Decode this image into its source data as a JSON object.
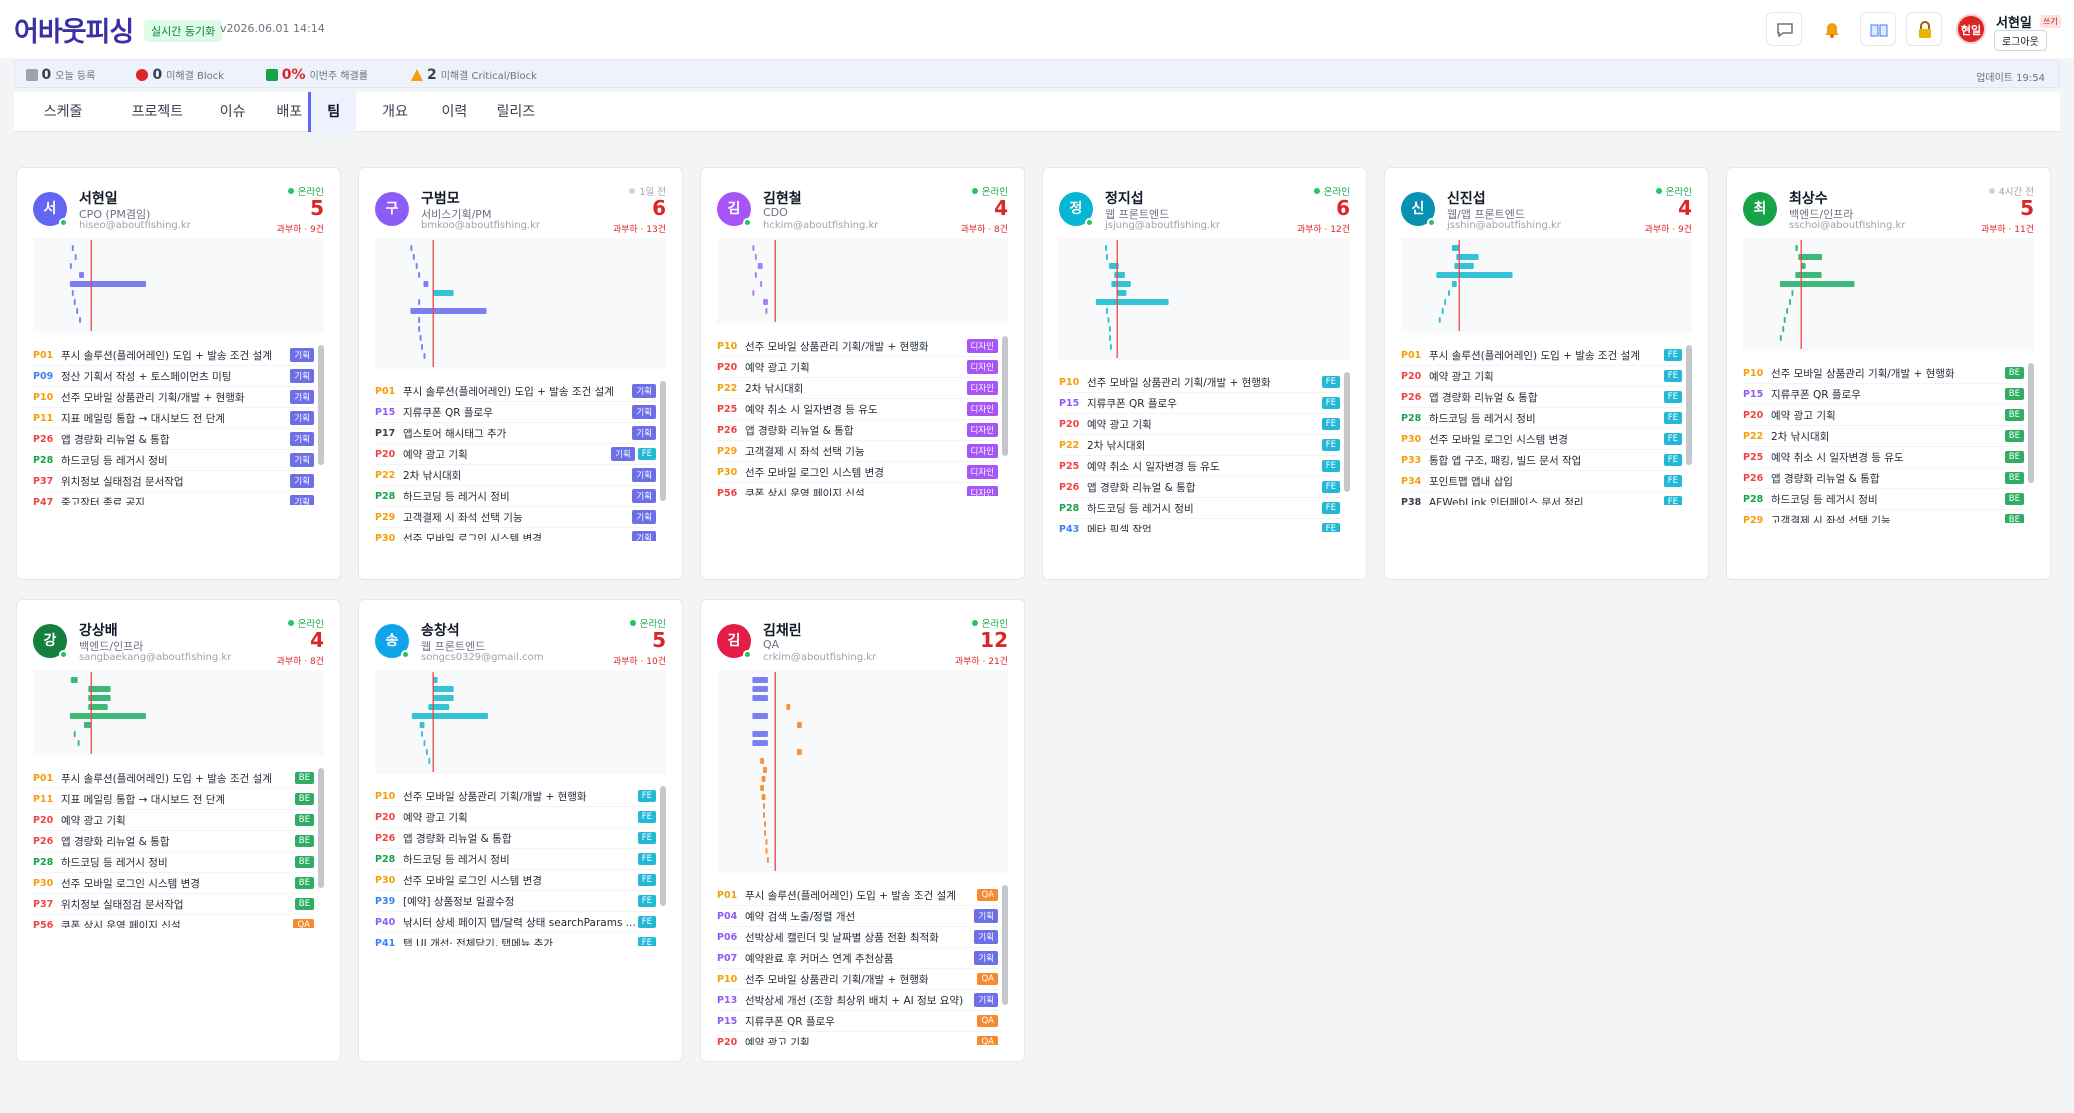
{
  "header": {
    "logo": "어바웃피싱",
    "sync_badge": "실시간 동기화",
    "version": "v2026.06.01 14:14",
    "avatar": "현일",
    "user_name": "서현일",
    "user_role": "쓰기",
    "logout": "로그아웃"
  },
  "stats": [
    {
      "value": 0,
      "label": "오늘 등록",
      "color": "#374151"
    },
    {
      "value": 0,
      "label": "미해결 Block",
      "color": "#374151"
    },
    {
      "value": "0%",
      "label": "이번주 해결률",
      "color": "#dc2626"
    },
    {
      "value": 2,
      "label": "미해결 Critical/Block",
      "color": "#374151"
    }
  ],
  "updated": "업데이트 19:54",
  "tabs": [
    "스케줄",
    "프로젝트",
    "이슈",
    "배포",
    "팀",
    "개요",
    "이력",
    "릴리즈"
  ],
  "active_tab": 4,
  "timeline": {
    "xlim": [
      0,
      60
    ],
    "today": 12
  },
  "tag_colors": {
    "기획": "#6c6fe6",
    "디자인": "#a855f7",
    "FE": "#22b8d6",
    "BE": "#2fae63",
    "QA": "#f58a2e"
  },
  "bar_colors": {
    "기획": "#7b7ff0",
    "디자인": "#a77ef0",
    "FE": "#34c3d6",
    "BE": "#3cb878",
    "QA": "#f5923e"
  },
  "priority_colors": {
    "P01": "#f59e0b",
    "P04": "#8b5cf6",
    "P06": "#8b5cf6",
    "P07": "#8b5cf6",
    "P09": "#3b82f6",
    "P10": "#f59e0b",
    "P11": "#f59e0b",
    "P13": "#8b5cf6",
    "P15": "#8b5cf6",
    "P17": "#374151",
    "P20": "#ef4444",
    "P22": "#f59e0b",
    "P25": "#ef4444",
    "P26": "#ef4444",
    "P28": "#16a34a",
    "P29": "#f59e0b",
    "P30": "#f59e0b",
    "P33": "#f59e0b",
    "P34": "#f59e0b",
    "P37": "#ef4444",
    "P38": "#374151",
    "P39": "#3b82f6",
    "P40": "#8b5cf6",
    "P41": "#3b82f6",
    "P43": "#3b82f6",
    "P47": "#ef4444",
    "P56": "#ef4444"
  },
  "members": [
    {
      "initial": "서",
      "avatar_color": "#6366f1",
      "name": "서현일",
      "role": "CPO (PM겸임)",
      "email": "hiseo@aboutfishing.kr",
      "status": "온라인",
      "online": true,
      "count": 5,
      "load": "과부하 · 9건",
      "bars": [
        [
          8,
          0.4,
          "기획"
        ],
        [
          8.6,
          0.4,
          "기획"
        ],
        [
          7.6,
          0.4,
          "기획"
        ],
        [
          9.5,
          1,
          "기획"
        ],
        [
          7.6,
          15.7,
          "기획"
        ],
        [
          8,
          0.4,
          "기획"
        ],
        [
          8.4,
          0.4,
          "기획"
        ],
        [
          8.9,
          0.4,
          "기획"
        ],
        [
          9.5,
          0.4,
          "기획"
        ]
      ],
      "tasks": [
        [
          "P01",
          "푸시 솔루션(플레어레인) 도입 + 발송 조건 설계",
          [
            "기획"
          ]
        ],
        [
          "P09",
          "정산 기획서 작성 + 토스페이먼츠 미팅",
          [
            "기획"
          ]
        ],
        [
          "P10",
          "선주 모바일 상품관리 기획/개발 + 현행화",
          [
            "기획"
          ]
        ],
        [
          "P11",
          "지표 메일링 통합 → 대시보드 전 단계",
          [
            "기획"
          ]
        ],
        [
          "P26",
          "앱 경량화 리뉴얼 & 통합",
          [
            "기획"
          ]
        ],
        [
          "P28",
          "하드코딩 등 레거시 정비",
          [
            "기획"
          ]
        ],
        [
          "P37",
          "위치정보 실태점검 문서작업",
          [
            "기획"
          ]
        ],
        [
          "P47",
          "중고장터 종료 공지",
          [
            "기획"
          ]
        ]
      ]
    },
    {
      "initial": "구",
      "avatar_color": "#8b5cf6",
      "name": "구범모",
      "role": "서비스기획/PM",
      "email": "bmkoo@aboutfishing.kr",
      "status": "1일 전",
      "online": false,
      "count": 6,
      "load": "과부하 · 13건",
      "bars": [
        [
          7.3,
          0.4,
          "기획"
        ],
        [
          7.8,
          0.4,
          "기획"
        ],
        [
          8.4,
          0.4,
          "기획"
        ],
        [
          8.9,
          0.4,
          "기획"
        ],
        [
          10,
          1,
          "기획"
        ],
        [
          11.9,
          4.3,
          "FE"
        ],
        [
          8.9,
          0.4,
          "기획"
        ],
        [
          7.3,
          15.7,
          "기획"
        ],
        [
          8.9,
          0.4,
          "기획"
        ],
        [
          8.9,
          0.4,
          "기획"
        ],
        [
          9.2,
          0.4,
          "기획"
        ],
        [
          9.5,
          0.4,
          "기획"
        ],
        [
          10,
          0.4,
          "기획"
        ]
      ],
      "tasks": [
        [
          "P01",
          "푸시 솔루션(플레어레인) 도입 + 발송 조건 설계",
          [
            "기획"
          ]
        ],
        [
          "P15",
          "지류쿠폰 QR 플로우",
          [
            "기획"
          ]
        ],
        [
          "P17",
          "앱스토어 해시태그 추가",
          [
            "기획"
          ]
        ],
        [
          "P20",
          "예약 광고 기획",
          [
            "기획",
            "FE"
          ]
        ],
        [
          "P22",
          "2차 낚시대회",
          [
            "기획"
          ]
        ],
        [
          "P28",
          "하드코딩 등 레거시 정비",
          [
            "기획"
          ]
        ],
        [
          "P29",
          "고객결제 시 좌석 선택 기능",
          [
            "기획"
          ]
        ],
        [
          "P30",
          "선주 모바일 로그인 시스템 변경",
          [
            "기획"
          ]
        ]
      ]
    },
    {
      "initial": "김",
      "avatar_color": "#a855f7",
      "name": "김현철",
      "role": "CDO",
      "email": "hckim@aboutfishing.kr",
      "status": "온라인",
      "online": true,
      "count": 4,
      "load": "과부하 · 8건",
      "bars": [
        [
          7.3,
          0.4,
          "디자인"
        ],
        [
          7.8,
          0.4,
          "디자인"
        ],
        [
          8.4,
          1,
          "디자인"
        ],
        [
          7.8,
          0.4,
          "디자인"
        ],
        [
          8.9,
          0.4,
          "디자인"
        ],
        [
          7.3,
          0.4,
          "디자인"
        ],
        [
          9.5,
          1,
          "디자인"
        ],
        [
          10,
          0.4,
          "디자인"
        ]
      ],
      "tasks": [
        [
          "P10",
          "선주 모바일 상품관리 기획/개발 + 현행화",
          [
            "디자인"
          ]
        ],
        [
          "P20",
          "예약 광고 기획",
          [
            "디자인"
          ]
        ],
        [
          "P22",
          "2차 낚시대회",
          [
            "디자인"
          ]
        ],
        [
          "P25",
          "예약 취소 시 일자변경 등 유도",
          [
            "디자인"
          ]
        ],
        [
          "P26",
          "앱 경량화 리뉴얼 & 통합",
          [
            "디자인"
          ]
        ],
        [
          "P29",
          "고객결제 시 좌석 선택 기능",
          [
            "디자인"
          ]
        ],
        [
          "P30",
          "선주 모바일 로그인 시스템 변경",
          [
            "디자인"
          ]
        ],
        [
          "P56",
          "쿠폰 상시 운영 페이지 신설",
          [
            "디자인"
          ]
        ]
      ]
    },
    {
      "initial": "정",
      "avatar_color": "#06b6d4",
      "name": "정지섭",
      "role": "웹 프론트엔드",
      "email": "jsjung@aboutfishing.kr",
      "status": "온라인",
      "online": true,
      "count": 6,
      "load": "과부하 · 12건",
      "bars": [
        [
          9.5,
          0.4,
          "FE"
        ],
        [
          9.7,
          0.4,
          "FE"
        ],
        [
          10.3,
          2,
          "FE"
        ],
        [
          11.4,
          2.2,
          "FE"
        ],
        [
          10.8,
          4,
          "FE"
        ],
        [
          11.9,
          2,
          "FE"
        ],
        [
          7.6,
          15,
          "FE"
        ],
        [
          9.7,
          0.4,
          "FE"
        ],
        [
          10,
          0.4,
          "FE"
        ],
        [
          10.3,
          0.4,
          "FE"
        ],
        [
          10.3,
          0.4,
          "FE"
        ],
        [
          10.5,
          0.4,
          "FE"
        ]
      ],
      "tasks": [
        [
          "P10",
          "선주 모바일 상품관리 기획/개발 + 현행화",
          [
            "FE"
          ]
        ],
        [
          "P15",
          "지류쿠폰 QR 플로우",
          [
            "FE"
          ]
        ],
        [
          "P20",
          "예약 광고 기획",
          [
            "FE"
          ]
        ],
        [
          "P22",
          "2차 낚시대회",
          [
            "FE"
          ]
        ],
        [
          "P25",
          "예약 취소 시 일자변경 등 유도",
          [
            "FE"
          ]
        ],
        [
          "P26",
          "앱 경량화 리뉴얼 & 통합",
          [
            "FE"
          ]
        ],
        [
          "P28",
          "하드코딩 등 레거시 정비",
          [
            "FE"
          ]
        ],
        [
          "P43",
          "메타 픽셀 작업",
          [
            "FE"
          ]
        ]
      ]
    },
    {
      "initial": "신",
      "avatar_color": "#0891b2",
      "name": "신진섭",
      "role": "웹/앱 프론트엔드",
      "email": "jsshin@aboutfishing.kr",
      "status": "온라인",
      "online": true,
      "count": 4,
      "load": "과부하 · 9건",
      "bars": [
        [
          10.5,
          1.5,
          "FE"
        ],
        [
          11.4,
          4.6,
          "FE"
        ],
        [
          11,
          4,
          "FE"
        ],
        [
          7.3,
          15.7,
          "FE"
        ],
        [
          10.5,
          1,
          "FE"
        ],
        [
          9.7,
          0.4,
          "FE"
        ],
        [
          8.9,
          0.4,
          "FE"
        ],
        [
          8.4,
          0.4,
          "FE"
        ],
        [
          7.8,
          0.4,
          "FE"
        ]
      ],
      "tasks": [
        [
          "P01",
          "푸시 솔루션(플레어레인) 도입 + 발송 조건 설계",
          [
            "FE"
          ]
        ],
        [
          "P20",
          "예약 광고 기획",
          [
            "FE"
          ]
        ],
        [
          "P26",
          "앱 경량화 리뉴얼 & 통합",
          [
            "FE"
          ]
        ],
        [
          "P28",
          "하드코딩 등 레거시 정비",
          [
            "FE"
          ]
        ],
        [
          "P30",
          "선주 모바일 로그인 시스템 변경",
          [
            "FE"
          ]
        ],
        [
          "P33",
          "통합 앱 구조, 패킹, 빌드 문서 작업",
          [
            "FE"
          ]
        ],
        [
          "P34",
          "포인트맵 앱내 삽입",
          [
            "FE"
          ]
        ],
        [
          "P38",
          "AFWebLink 인터페이스 문서 정리",
          [
            "FE"
          ]
        ]
      ]
    },
    {
      "initial": "최",
      "avatar_color": "#16a34a",
      "name": "최상수",
      "role": "백엔드/인프라",
      "email": "sschoi@aboutfishing.kr",
      "status": "4시간 전",
      "online": false,
      "count": 5,
      "load": "과부하 · 11건",
      "bars": [
        [
          10.8,
          0.5,
          "BE"
        ],
        [
          11.4,
          4.9,
          "BE"
        ],
        [
          11.9,
          1,
          "BE"
        ],
        [
          10.8,
          5.4,
          "BE"
        ],
        [
          7.6,
          15.4,
          "BE"
        ],
        [
          10,
          0.4,
          "BE"
        ],
        [
          9.5,
          0.4,
          "BE"
        ],
        [
          8.9,
          0.4,
          "BE"
        ],
        [
          8.4,
          0.4,
          "BE"
        ],
        [
          8.1,
          0.4,
          "BE"
        ],
        [
          7.6,
          0.4,
          "BE"
        ]
      ],
      "tasks": [
        [
          "P10",
          "선주 모바일 상품관리 기획/개발 + 현행화",
          [
            "BE"
          ]
        ],
        [
          "P15",
          "지류쿠폰 QR 플로우",
          [
            "BE"
          ]
        ],
        [
          "P20",
          "예약 광고 기획",
          [
            "BE"
          ]
        ],
        [
          "P22",
          "2차 낚시대회",
          [
            "BE"
          ]
        ],
        [
          "P25",
          "예약 취소 시 일자변경 등 유도",
          [
            "BE"
          ]
        ],
        [
          "P26",
          "앱 경량화 리뉴얼 & 통합",
          [
            "BE"
          ]
        ],
        [
          "P28",
          "하드코딩 등 레거시 정비",
          [
            "BE"
          ]
        ],
        [
          "P29",
          "고객결제 시 좌석 선택 기능",
          [
            "BE"
          ]
        ]
      ]
    },
    {
      "initial": "강",
      "avatar_color": "#15803d",
      "name": "강상배",
      "role": "백엔드/인프라",
      "email": "sangbaekang@aboutfishing.kr",
      "status": "온라인",
      "online": true,
      "count": 4,
      "load": "과부하 · 8건",
      "bars": [
        [
          7.8,
          1.4,
          "BE"
        ],
        [
          11.4,
          4.6,
          "BE"
        ],
        [
          11.4,
          4.6,
          "BE"
        ],
        [
          11.4,
          4,
          "BE"
        ],
        [
          7.6,
          15.7,
          "BE"
        ],
        [
          10.5,
          1.4,
          "BE"
        ],
        [
          8.4,
          0.4,
          "BE"
        ],
        [
          9.2,
          0.4,
          "BE"
        ]
      ],
      "tasks": [
        [
          "P01",
          "푸시 솔루션(플레어레인) 도입 + 발송 조건 설계",
          [
            "BE"
          ]
        ],
        [
          "P11",
          "지표 메일링 통합 → 대시보드 전 단계",
          [
            "BE"
          ]
        ],
        [
          "P20",
          "예약 광고 기획",
          [
            "BE"
          ]
        ],
        [
          "P26",
          "앱 경량화 리뉴얼 & 통합",
          [
            "BE"
          ]
        ],
        [
          "P28",
          "하드코딩 등 레거시 정비",
          [
            "BE"
          ]
        ],
        [
          "P30",
          "선주 모바일 로그인 시스템 변경",
          [
            "BE"
          ]
        ],
        [
          "P37",
          "위치정보 실태점검 문서작업",
          [
            "BE"
          ]
        ],
        [
          "P56",
          "쿠폰 상시 운영 페이지 신설",
          [
            "QA"
          ]
        ]
      ]
    },
    {
      "initial": "송",
      "avatar_color": "#0ea5e9",
      "name": "송창석",
      "role": "웹 프론트엔드",
      "email": "songcs0329@gmail.com",
      "status": "온라인",
      "online": true,
      "count": 5,
      "load": "과부하 · 10건",
      "bars": [
        [
          11.9,
          1,
          "FE"
        ],
        [
          11.9,
          4.3,
          "FE"
        ],
        [
          11.9,
          4.3,
          "FE"
        ],
        [
          11,
          4.3,
          "FE"
        ],
        [
          7.6,
          15.7,
          "FE"
        ],
        [
          9.2,
          1,
          "FE"
        ],
        [
          9.5,
          0.4,
          "FE"
        ],
        [
          10,
          0.4,
          "FE"
        ],
        [
          10.5,
          0.4,
          "FE"
        ],
        [
          11,
          0.4,
          "FE"
        ]
      ],
      "tasks": [
        [
          "P10",
          "선주 모바일 상품관리 기획/개발 + 현행화",
          [
            "FE"
          ]
        ],
        [
          "P20",
          "예약 광고 기획",
          [
            "FE"
          ]
        ],
        [
          "P26",
          "앱 경량화 리뉴얼 & 통합",
          [
            "FE"
          ]
        ],
        [
          "P28",
          "하드코딩 등 레거시 정비",
          [
            "FE"
          ]
        ],
        [
          "P30",
          "선주 모바일 로그인 시스템 변경",
          [
            "FE"
          ]
        ],
        [
          "P39",
          "[예약] 상품정보 일괄수정",
          [
            "FE"
          ]
        ],
        [
          "P40",
          "낚시터 상세 페이지 탭/달력 상태 searchParams ...",
          [
            "FE"
          ]
        ],
        [
          "P41",
          "탭 UI 개선· 전체닫기, 탭메뉴 추가",
          [
            "FE"
          ]
        ]
      ]
    },
    {
      "initial": "김",
      "avatar_color": "#e11d48",
      "name": "김채린",
      "role": "QA",
      "email": "crkim@aboutfishing.kr",
      "status": "온라인",
      "online": true,
      "count": 12,
      "load": "과부하 · 21건",
      "bars": [
        [
          7.3,
          3.2,
          "기획"
        ],
        [
          7.3,
          3.2,
          "기획"
        ],
        [
          7.3,
          3.2,
          "기획"
        ],
        [
          14.3,
          0.8,
          "QA"
        ],
        [
          7.3,
          3.2,
          "기획"
        ],
        [
          16.5,
          1,
          "QA"
        ],
        [
          7.3,
          3.2,
          "기획"
        ],
        [
          7.3,
          3.2,
          "기획"
        ],
        [
          16.5,
          1,
          "QA"
        ],
        [
          8.9,
          0.8,
          "QA"
        ],
        [
          9.5,
          0.8,
          "QA"
        ],
        [
          9.2,
          0.8,
          "QA"
        ],
        [
          8.9,
          0.8,
          "QA"
        ],
        [
          9.2,
          0.8,
          "QA"
        ],
        [
          9.5,
          0.4,
          "QA"
        ],
        [
          9.5,
          0.4,
          "QA"
        ],
        [
          9.7,
          0.4,
          "QA"
        ],
        [
          9.7,
          0.4,
          "QA"
        ],
        [
          10,
          0.4,
          "QA"
        ],
        [
          10,
          0.4,
          "QA"
        ],
        [
          10.3,
          0.4,
          "QA"
        ]
      ],
      "tasks": [
        [
          "P01",
          "푸시 솔루션(플레어레인) 도입 + 발송 조건 설계",
          [
            "QA"
          ]
        ],
        [
          "P04",
          "예약 검색 노출/정렬 개선",
          [
            "기획"
          ]
        ],
        [
          "P06",
          "선박상세 캘린더 및 날짜별 상품 전환 최적화",
          [
            "기획"
          ]
        ],
        [
          "P07",
          "예약완료 후 커머스 연계 추천상품",
          [
            "기획"
          ]
        ],
        [
          "P10",
          "선주 모바일 상품관리 기획/개발 + 현행화",
          [
            "QA"
          ]
        ],
        [
          "P13",
          "선박상세 개선 (조항 최상위 배치 + AI 정보 요약)",
          [
            "기획"
          ]
        ],
        [
          "P15",
          "지류쿠폰 QR 플로우",
          [
            "QA"
          ]
        ],
        [
          "P20",
          "예약 광고 기획",
          [
            "QA"
          ]
        ]
      ]
    }
  ]
}
